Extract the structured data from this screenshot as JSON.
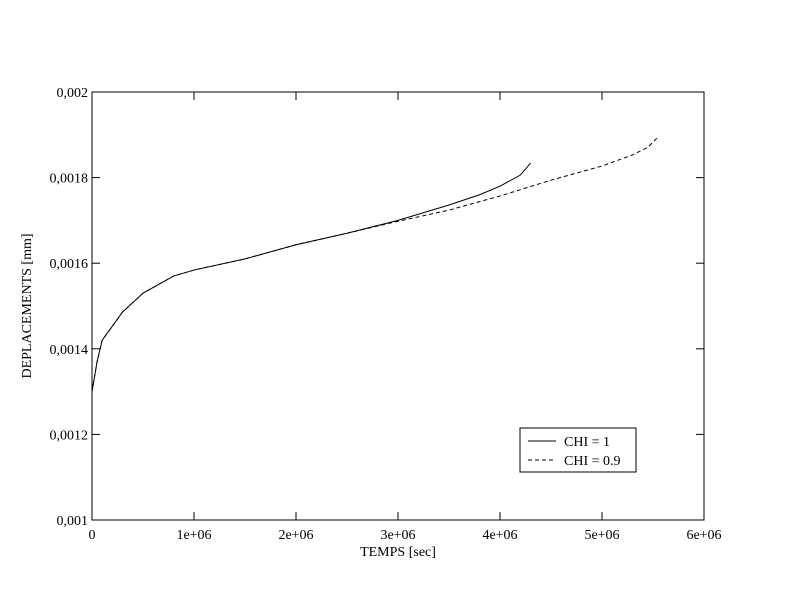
{
  "chart_data": {
    "type": "line",
    "x_label": "TEMPS [sec]",
    "y_label": "DEPLACEMENTS [mm]",
    "xlim": [
      0,
      6000000
    ],
    "ylim": [
      0.001,
      0.002
    ],
    "xticks": [
      0,
      {
        "value": 1000000,
        "label": "1e+06"
      },
      {
        "value": 2000000,
        "label": "2e+06"
      },
      {
        "value": 3000000,
        "label": "3e+06"
      },
      {
        "value": 4000000,
        "label": "4e+06"
      },
      {
        "value": 5000000,
        "label": "5e+06"
      },
      {
        "value": 6000000,
        "label": "6e+06"
      }
    ],
    "yticks": [
      {
        "value": 0.001,
        "label": "0,001"
      },
      {
        "value": 0.0012,
        "label": "0,0012"
      },
      {
        "value": 0.0014,
        "label": "0,0014"
      },
      {
        "value": 0.0016,
        "label": "0,0016"
      },
      {
        "value": 0.0018,
        "label": "0,0018"
      },
      {
        "value": 0.002,
        "label": "0,002"
      }
    ],
    "legend": "lower right",
    "series": [
      {
        "name": "CHI = 1",
        "color": "#000000",
        "dash": "solid",
        "x": [
          0,
          50000,
          100000,
          300000,
          500000,
          800000,
          1000000,
          1500000,
          2000000,
          2500000,
          3000000,
          3500000,
          3800000,
          4000000,
          4200000,
          4300000
        ],
        "values": [
          0.0013,
          0.00137,
          0.00142,
          0.001486,
          0.00153,
          0.00157,
          0.001584,
          0.00161,
          0.001643,
          0.00167,
          0.0017,
          0.001736,
          0.00176,
          0.00178,
          0.001806,
          0.001834
        ]
      },
      {
        "name": "CHI = 0.9",
        "color": "#000000",
        "dash": "dashed",
        "x": [
          0,
          50000,
          100000,
          300000,
          500000,
          800000,
          1000000,
          1500000,
          2000000,
          2500000,
          3000000,
          3500000,
          4000000,
          4500000,
          5000000,
          5300000,
          5450000,
          5550000
        ],
        "values": [
          0.0013,
          0.00137,
          0.00142,
          0.001486,
          0.00153,
          0.00157,
          0.001584,
          0.00161,
          0.001643,
          0.00167,
          0.001698,
          0.001724,
          0.001757,
          0.001794,
          0.001827,
          0.001853,
          0.001871,
          0.001895
        ]
      }
    ]
  }
}
